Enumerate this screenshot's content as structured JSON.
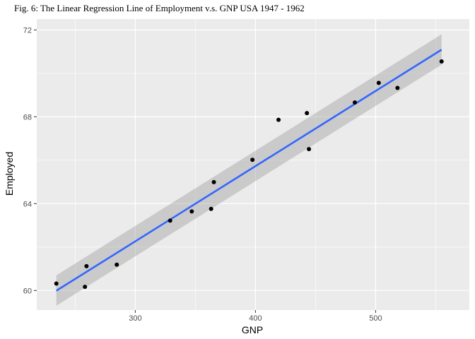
{
  "chart_data": {
    "type": "scatter",
    "title": "Fig. 6: The Linear Regression Line of Employment v.s. GNP USA 1947 - 1962",
    "xlabel": "GNP",
    "ylabel": "Employed",
    "xlim": [
      218,
      578
    ],
    "ylim": [
      59.1,
      72.5
    ],
    "x_ticks": [
      300,
      400,
      500
    ],
    "y_ticks": [
      60,
      64,
      68,
      72
    ],
    "x_tick_labels": [
      "300",
      "400",
      "500"
    ],
    "y_tick_labels": [
      "60",
      "64",
      "68",
      "72"
    ],
    "x_minor_ticks": [
      250,
      350,
      450,
      550
    ],
    "y_minor_ticks": [
      62,
      66,
      70
    ],
    "grid": true,
    "points": [
      {
        "x": 234.3,
        "y": 60.32
      },
      {
        "x": 259.4,
        "y": 61.12
      },
      {
        "x": 258.1,
        "y": 60.17
      },
      {
        "x": 284.6,
        "y": 61.19
      },
      {
        "x": 329.0,
        "y": 63.22
      },
      {
        "x": 347.0,
        "y": 63.64
      },
      {
        "x": 365.4,
        "y": 64.99
      },
      {
        "x": 363.1,
        "y": 63.76
      },
      {
        "x": 397.5,
        "y": 66.02
      },
      {
        "x": 419.2,
        "y": 67.86
      },
      {
        "x": 442.8,
        "y": 68.17
      },
      {
        "x": 444.5,
        "y": 66.51
      },
      {
        "x": 482.7,
        "y": 68.66
      },
      {
        "x": 502.6,
        "y": 69.56
      },
      {
        "x": 518.2,
        "y": 69.33
      },
      {
        "x": 554.9,
        "y": 70.55
      }
    ],
    "regression": {
      "x_range": [
        234.3,
        554.9
      ],
      "y_start": 59.99,
      "y_end": 71.09,
      "ci_start": [
        59.3,
        60.7
      ],
      "ci_end": [
        70.4,
        71.8
      ]
    },
    "colors": {
      "panel": "#ebebeb",
      "grid_major": "#ffffff",
      "point": "#000000",
      "line": "#3366ff",
      "ribbon": "#999999"
    }
  }
}
